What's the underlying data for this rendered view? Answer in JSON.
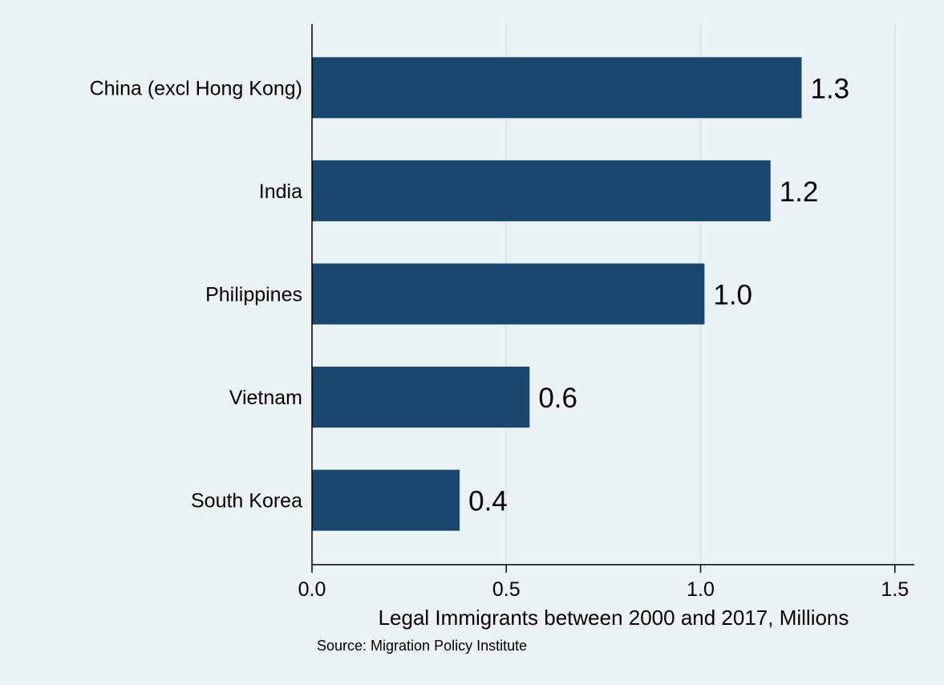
{
  "colors": {
    "background": "#eaf2f3",
    "bar": "#1a476f",
    "grid": "#d9e6e8",
    "axis": "#000000"
  },
  "chart_data": {
    "type": "bar",
    "orientation": "horizontal",
    "categories": [
      "China (excl Hong Kong)",
      "India",
      "Philippines",
      "Vietnam",
      "South Korea"
    ],
    "values": [
      1.26,
      1.18,
      1.01,
      0.56,
      0.38
    ],
    "value_labels": [
      "1.3",
      "1.2",
      "1.0",
      "0.6",
      "0.4"
    ],
    "xlabel": "Legal Immigrants between 2000 and 2017, Millions",
    "ylabel": "",
    "xlim": [
      0,
      1.55
    ],
    "xticks": [
      0,
      0.5,
      1.0,
      1.5
    ],
    "xtick_labels": [
      "0.0",
      "0.5",
      "1.0",
      "1.5"
    ],
    "grid": true,
    "note": "Source: Migration Policy Institute"
  }
}
